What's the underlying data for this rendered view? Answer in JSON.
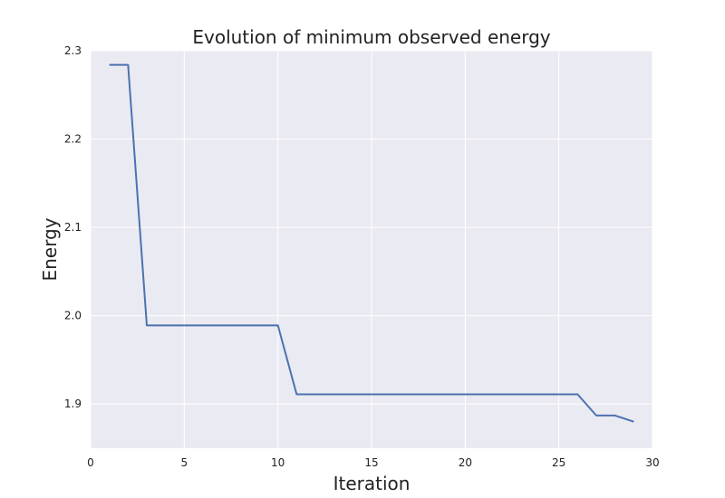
{
  "chart_data": {
    "type": "line",
    "title": "Evolution of minimum observed energy",
    "xlabel": "Iteration",
    "ylabel": "Energy",
    "xlim": [
      0,
      30
    ],
    "ylim": [
      1.85,
      2.3
    ],
    "xticks": [
      0,
      5,
      10,
      15,
      20,
      25,
      30
    ],
    "xtick_labels": [
      "0",
      "5",
      "10",
      "15",
      "20",
      "25",
      "30"
    ],
    "yticks": [
      1.9,
      2.0,
      2.1,
      2.2,
      2.3
    ],
    "ytick_labels": [
      "1.9",
      "2.0",
      "2.1",
      "2.2",
      "2.3"
    ],
    "grid": true,
    "series": [
      {
        "x": [
          1,
          2,
          3,
          4,
          5,
          6,
          7,
          8,
          9,
          10,
          11,
          12,
          13,
          14,
          15,
          16,
          17,
          18,
          19,
          20,
          21,
          22,
          23,
          24,
          25,
          26,
          27,
          28,
          29
        ],
        "values": [
          2.284,
          2.284,
          1.989,
          1.989,
          1.989,
          1.989,
          1.989,
          1.989,
          1.989,
          1.989,
          1.911,
          1.911,
          1.911,
          1.911,
          1.911,
          1.911,
          1.911,
          1.911,
          1.911,
          1.911,
          1.911,
          1.911,
          1.911,
          1.911,
          1.911,
          1.911,
          1.887,
          1.887,
          1.88
        ]
      }
    ]
  },
  "colors": {
    "plot_background": "#EAEAF2",
    "grid": "#ffffff",
    "line": "#4C72B0",
    "text": "#222222"
  }
}
